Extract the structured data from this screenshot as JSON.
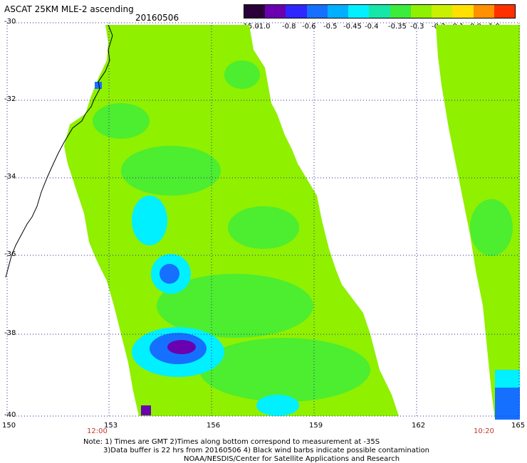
{
  "header": {
    "title": "ASCAT 25KM MLE-2 ascending",
    "date": "20160506"
  },
  "colorbar": {
    "labels": [
      "-15.0",
      "-1.0",
      "-0.8",
      "-0.6",
      "-0.5",
      "-0.45",
      "-0.4",
      "-0.35",
      "-0.3",
      "-0.2",
      "-0.1",
      "0.0",
      "1.0"
    ],
    "colors": [
      "#2b0038",
      "#6a00b0",
      "#2f27ff",
      "#1670ff",
      "#00b0ff",
      "#00f0ff",
      "#16e6a8",
      "#3cec3c",
      "#8ff000",
      "#c9f000",
      "#ffe000",
      "#ff9000",
      "#ff2f00"
    ]
  },
  "axes": {
    "lat_labels": [
      "-30",
      "-32",
      "-34",
      "-36",
      "-38",
      "-40"
    ],
    "lon_labels": [
      "150",
      "153",
      "156",
      "159",
      "162",
      "165"
    ],
    "time_labels": [
      "12:00",
      "10:20"
    ]
  },
  "notes": [
    "Note: 1) Times are GMT 2)Times along bottom correspond to measurement at -35S",
    "3)Data buffer is 22 hrs from 20160506 4) Black wind barbs indicate possible contamination",
    "NOAA/NESDIS/Center for Satellite Applications and Research"
  ],
  "swath_colors": {
    "background": "#8ff000",
    "patch_green": "#3cec3c",
    "patch_cyan": "#00f0ff",
    "patch_blue": "#1670ff",
    "patch_purple": "#6a00b0",
    "coast": "#000000"
  }
}
